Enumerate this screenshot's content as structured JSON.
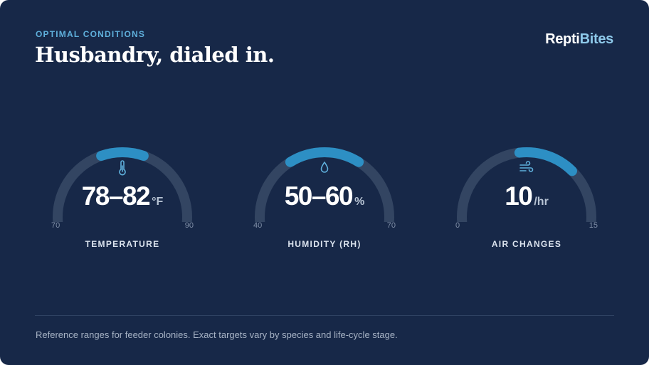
{
  "header": {
    "eyebrow": "OPTIMAL CONDITIONS",
    "title": "Husbandry, dialed in.",
    "logo": {
      "part1": "Repti",
      "part2": "Bites"
    }
  },
  "colors": {
    "background": "#172848",
    "track": "#334562",
    "accent": "#2d8fc4",
    "eyebrow": "#5fb0dc"
  },
  "gauges": [
    {
      "icon": "thermometer-icon",
      "value": "78–82",
      "unit": "°F",
      "min_label": "70",
      "max_label": "90",
      "label": "TEMPERATURE",
      "min": 70,
      "max": 90,
      "range": [
        78,
        82
      ]
    },
    {
      "icon": "water-drop-icon",
      "value": "50–60",
      "unit": "%",
      "min_label": "40",
      "max_label": "70",
      "label": "HUMIDITY (RH)",
      "min": 40,
      "max": 70,
      "range": [
        50,
        60
      ]
    },
    {
      "icon": "wind-icon",
      "value": "10",
      "unit": "/hr",
      "min_label": "0",
      "max_label": "15",
      "label": "AIR CHANGES",
      "min": 0,
      "max": 15,
      "range": [
        7,
        11
      ]
    }
  ],
  "footer": {
    "note": "Reference ranges for feeder colonies. Exact targets vary by species and life-cycle stage."
  }
}
